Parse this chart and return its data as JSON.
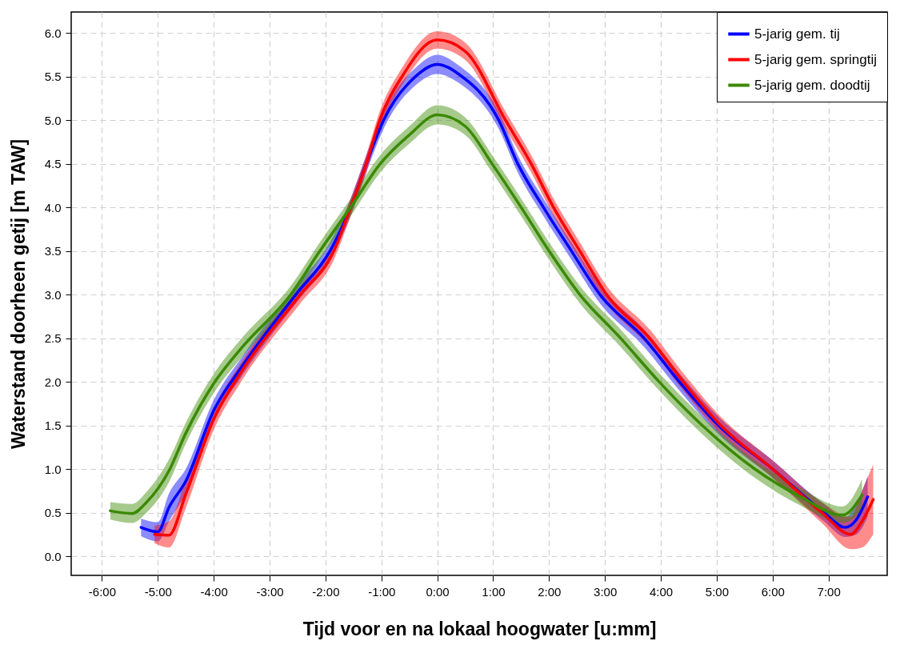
{
  "chart_data": {
    "type": "line",
    "xlabel": "Tijd voor en na lokaal hoogwater [u:mm]",
    "ylabel": "Waterstand doorheen getij [m TAW]",
    "xlim": [
      -6.55,
      8.05
    ],
    "ylim": [
      -0.22,
      6.24
    ],
    "xticks": [
      {
        "value": -6,
        "label": "-6:00"
      },
      {
        "value": -5,
        "label": "-5:00"
      },
      {
        "value": -4,
        "label": "-4:00"
      },
      {
        "value": -3,
        "label": "-3:00"
      },
      {
        "value": -2,
        "label": "-2:00"
      },
      {
        "value": -1,
        "label": "-1:00"
      },
      {
        "value": 0,
        "label": "0:00"
      },
      {
        "value": 1,
        "label": "1:00"
      },
      {
        "value": 2,
        "label": "2:00"
      },
      {
        "value": 3,
        "label": "3:00"
      },
      {
        "value": 4,
        "label": "4:00"
      },
      {
        "value": 5,
        "label": "5:00"
      },
      {
        "value": 6,
        "label": "6:00"
      },
      {
        "value": 7,
        "label": "7:00"
      }
    ],
    "yticks": [
      {
        "value": 0,
        "label": "0.0"
      },
      0.5,
      {
        "value": 1,
        "label": "1.0"
      },
      1.5,
      {
        "value": 2,
        "label": "2.0"
      },
      2.5,
      {
        "value": 3,
        "label": "3.0"
      },
      3.5,
      {
        "value": 4,
        "label": "4.0"
      },
      4.5,
      {
        "value": 5,
        "label": "5.0"
      },
      5.5,
      {
        "value": 6,
        "label": "6.0"
      }
    ],
    "grid": true,
    "legend": "top right",
    "series": [
      {
        "name": "5-jarig gem. tij",
        "color": "#0000ff",
        "x": [
          -5.3,
          -5.0,
          -4.8,
          -4.5,
          -4.0,
          -3.5,
          -2.53,
          -1.92,
          -1.55,
          -1.27,
          -0.96,
          -0.39,
          0,
          0.4,
          1.1,
          1.44,
          1.9,
          2.4,
          2.91,
          3.7,
          4.33,
          5.03,
          6.0,
          6.92,
          7.3,
          7.5,
          7.7
        ],
        "values": [
          0.33,
          0.28,
          0.56,
          0.86,
          1.67,
          2.17,
          3.0,
          3.5,
          4.0,
          4.5,
          5.0,
          5.5,
          5.64,
          5.52,
          5.0,
          4.5,
          4.0,
          3.5,
          3.0,
          2.5,
          2.0,
          1.5,
          1.0,
          0.5,
          0.33,
          0.42,
          0.68
        ],
        "lower": [
          0.23,
          0.17,
          0.4,
          0.72,
          1.55,
          2.06,
          2.9,
          3.4,
          3.9,
          4.4,
          4.9,
          5.4,
          5.53,
          5.42,
          4.9,
          4.4,
          3.9,
          3.4,
          2.9,
          2.4,
          1.9,
          1.4,
          0.9,
          0.4,
          0.22,
          0.25,
          0.45
        ],
        "upper": [
          0.43,
          0.39,
          0.72,
          1.0,
          1.79,
          2.28,
          3.1,
          3.6,
          4.1,
          4.6,
          5.1,
          5.6,
          5.75,
          5.62,
          5.1,
          4.6,
          4.1,
          3.6,
          3.1,
          2.6,
          2.1,
          1.6,
          1.1,
          0.6,
          0.45,
          0.6,
          0.92
        ]
      },
      {
        "name": "5-jarig gem. springtij",
        "color": "#ff0000",
        "x": [
          -5.06,
          -4.8,
          -4.5,
          -4.0,
          -3.5,
          -2.45,
          -1.85,
          -1.55,
          -1.27,
          -1.03,
          -0.63,
          0,
          0.5,
          1.22,
          1.68,
          2.08,
          2.55,
          3.03,
          3.8,
          4.4,
          5.07,
          6.0,
          6.88,
          7.4,
          7.6,
          7.8
        ],
        "values": [
          0.25,
          0.24,
          0.71,
          1.57,
          2.12,
          3.0,
          3.5,
          4.0,
          4.5,
          5.0,
          5.5,
          5.92,
          5.79,
          5.0,
          4.5,
          4.0,
          3.5,
          3.0,
          2.5,
          2.0,
          1.5,
          1.0,
          0.5,
          0.25,
          0.4,
          0.65
        ],
        "lower": [
          0.15,
          0.1,
          0.55,
          1.45,
          2.01,
          2.9,
          3.4,
          3.9,
          4.4,
          4.9,
          5.4,
          5.82,
          5.69,
          4.9,
          4.4,
          3.9,
          3.4,
          2.9,
          2.4,
          1.9,
          1.4,
          0.9,
          0.38,
          0.08,
          0.1,
          0.25
        ],
        "upper": [
          0.35,
          0.4,
          0.87,
          1.69,
          2.23,
          3.1,
          3.6,
          4.1,
          4.6,
          5.1,
          5.6,
          6.02,
          5.89,
          5.1,
          4.6,
          4.1,
          3.6,
          3.1,
          2.6,
          2.1,
          1.6,
          1.1,
          0.62,
          0.45,
          0.75,
          1.05
        ]
      },
      {
        "name": "5-jarig gem. doodtij",
        "color": "#3a8a00",
        "x": [
          -5.85,
          -5.46,
          -5.2,
          -4.8,
          -4.5,
          -4.0,
          -3.5,
          -2.62,
          -2.1,
          -1.55,
          -1.02,
          -0.5,
          0,
          0.5,
          0.98,
          1.5,
          2.0,
          2.55,
          3.28,
          3.97,
          4.74,
          5.68,
          6.5,
          7.25,
          7.6
        ],
        "values": [
          0.52,
          0.49,
          0.62,
          0.98,
          1.41,
          1.98,
          2.39,
          3.0,
          3.5,
          4.0,
          4.5,
          4.83,
          5.06,
          4.93,
          4.5,
          4.0,
          3.5,
          3.0,
          2.5,
          2.0,
          1.5,
          1.0,
          0.68,
          0.47,
          0.7
        ],
        "lower": [
          0.42,
          0.38,
          0.5,
          0.85,
          1.29,
          1.87,
          2.28,
          2.9,
          3.4,
          3.9,
          4.4,
          4.73,
          4.95,
          4.83,
          4.4,
          3.9,
          3.4,
          2.9,
          2.4,
          1.9,
          1.4,
          0.9,
          0.58,
          0.38,
          0.52
        ],
        "upper": [
          0.62,
          0.6,
          0.74,
          1.11,
          1.53,
          2.09,
          2.5,
          3.1,
          3.6,
          4.1,
          4.6,
          4.93,
          5.17,
          5.03,
          4.6,
          4.1,
          3.6,
          3.1,
          2.6,
          2.1,
          1.6,
          1.1,
          0.78,
          0.57,
          0.88
        ]
      }
    ]
  }
}
